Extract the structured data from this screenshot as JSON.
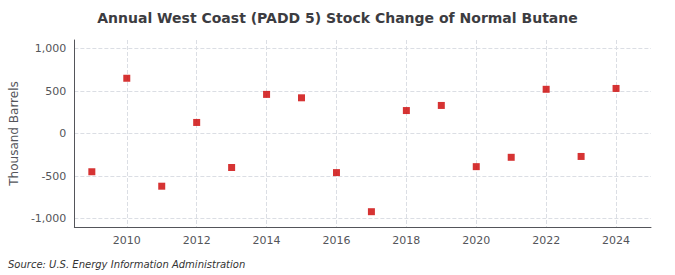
{
  "chart_data": {
    "type": "scatter",
    "title": "Annual West Coast (PADD 5) Stock Change of Normal Butane",
    "ylabel": "Thousand Barrels",
    "annotation": "Source: U.S. Energy Information Administration",
    "x": [
      2009,
      2010,
      2011,
      2012,
      2013,
      2014,
      2015,
      2016,
      2017,
      2018,
      2019,
      2020,
      2021,
      2022,
      2023,
      2024
    ],
    "values": [
      -450,
      650,
      -620,
      130,
      -400,
      460,
      420,
      -460,
      -920,
      270,
      330,
      -390,
      -280,
      520,
      -270,
      530
    ],
    "color": "#cc0000",
    "marker": "square",
    "xlim": [
      2008.5,
      2025.0
    ],
    "xticks": [
      2010,
      2012,
      2014,
      2016,
      2018,
      2020,
      2022,
      2024
    ],
    "ylim": [
      -1100,
      1100
    ],
    "yticks": [
      {
        "value": -1000,
        "label": "-1,000"
      },
      {
        "value": -500,
        "label": "-500"
      },
      0,
      500,
      {
        "value": 1000,
        "label": "1,000"
      }
    ],
    "grid": true
  }
}
